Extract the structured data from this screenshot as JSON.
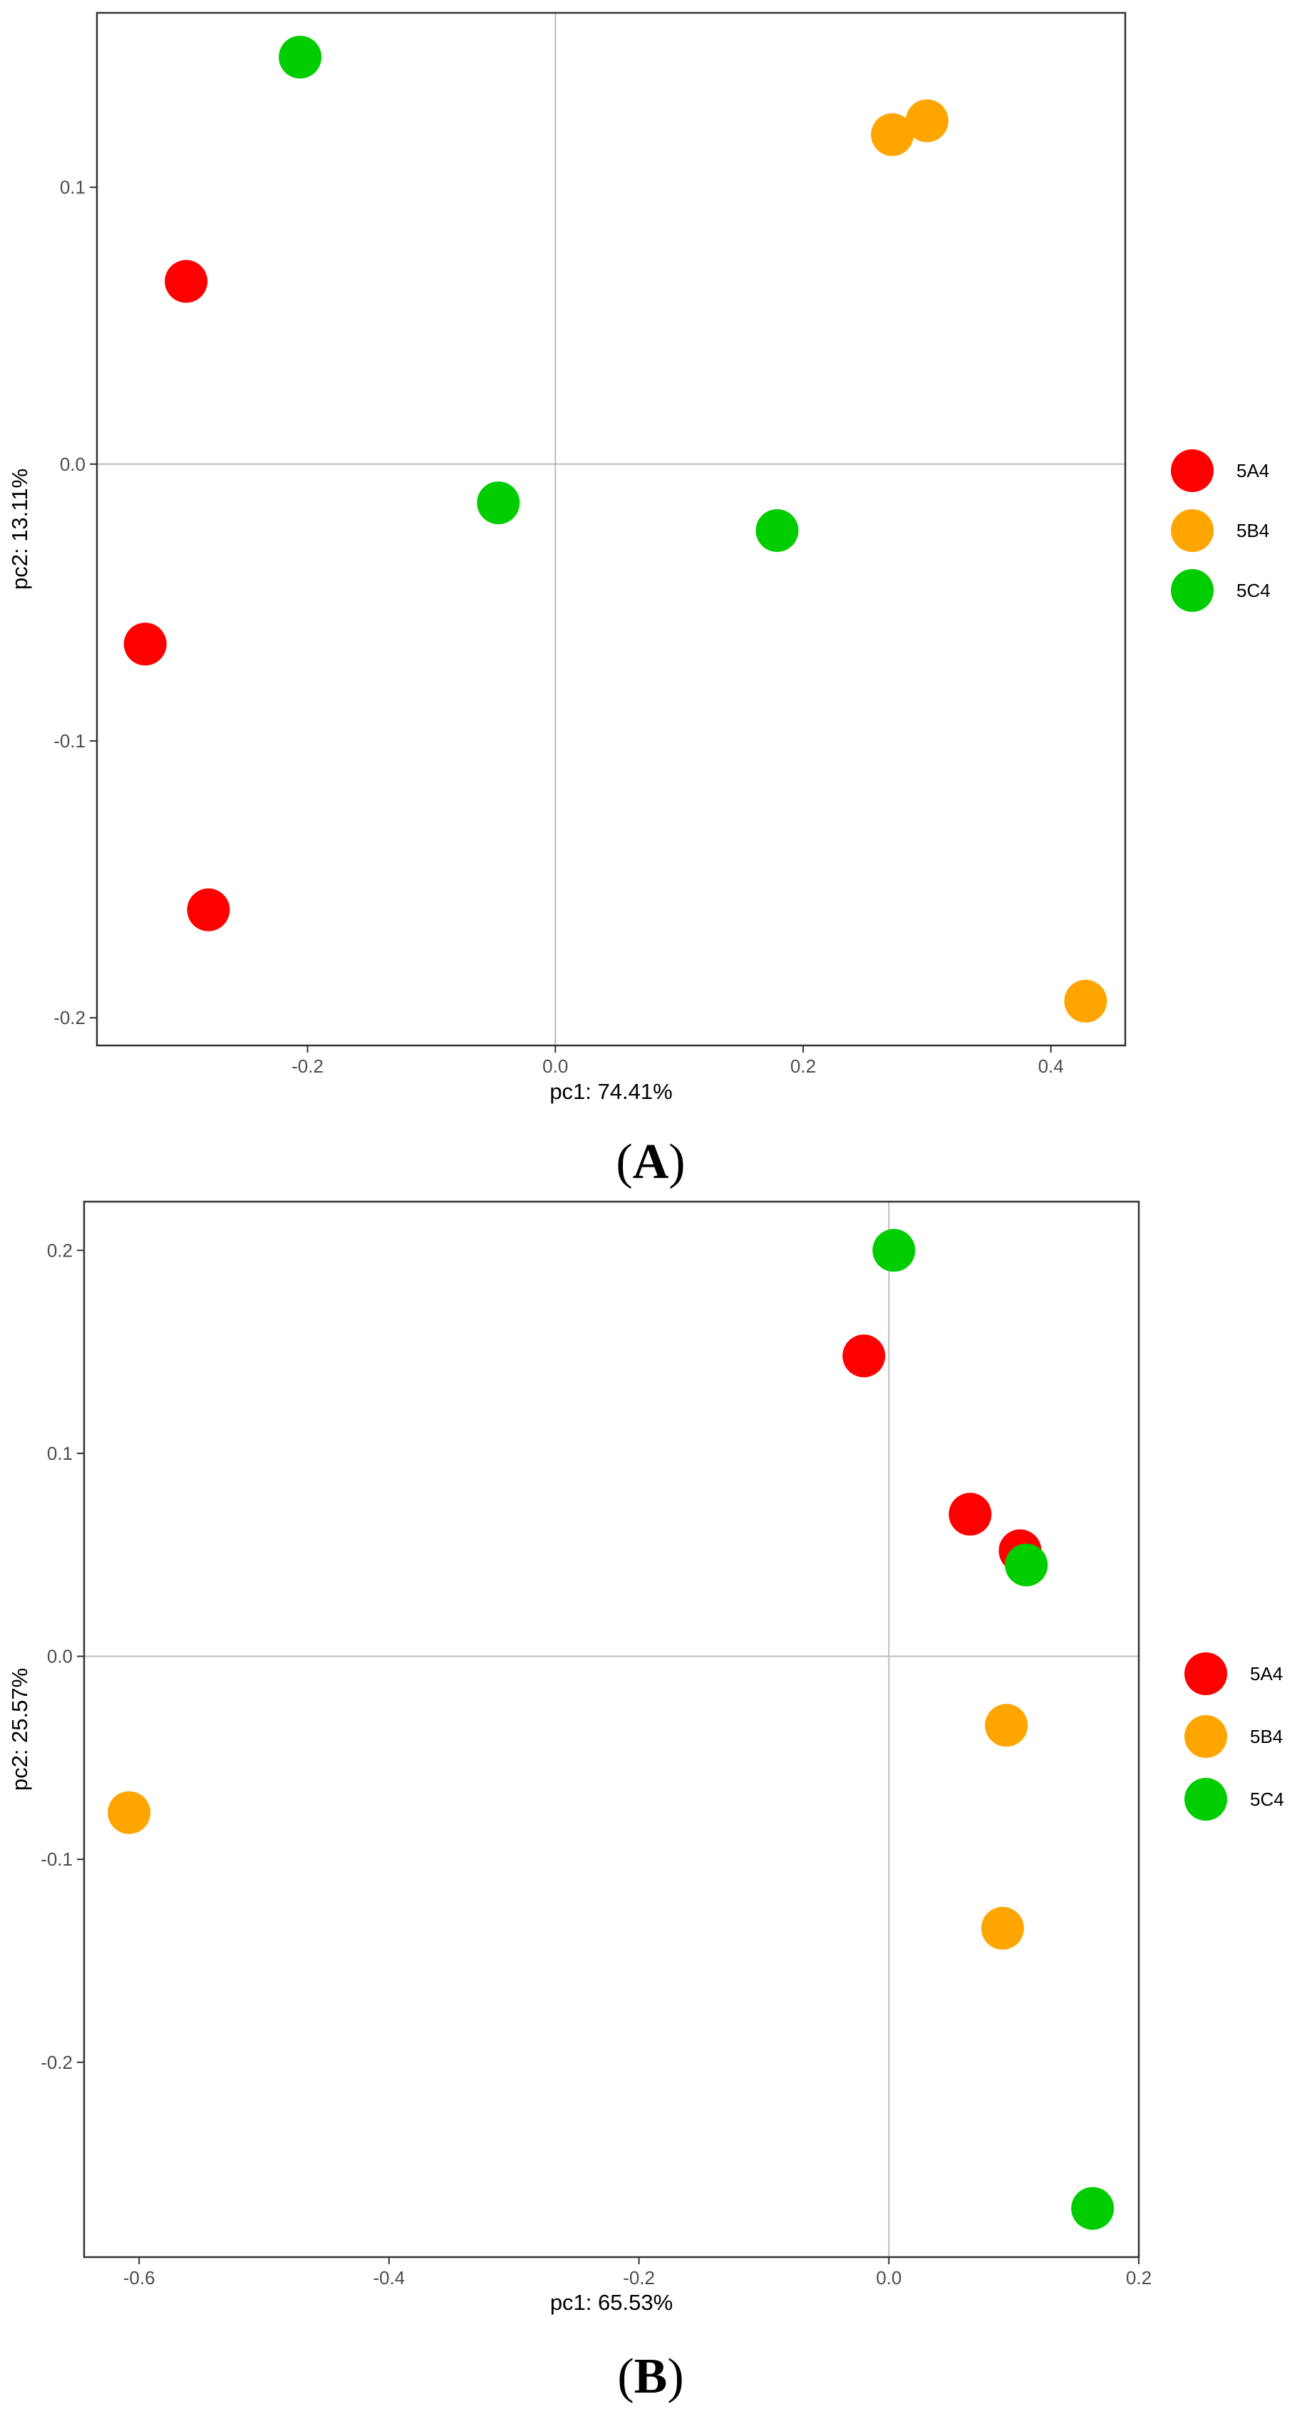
{
  "chart_data": [
    {
      "type": "scatter",
      "panel_label": "A",
      "xlabel": "pc1: 74.41%",
      "ylabel": "pc2: 13.11%",
      "xlim": [
        -0.37,
        0.46
      ],
      "ylim": [
        -0.21,
        0.163
      ],
      "xticks": [
        -0.2,
        0.0,
        0.2,
        0.4
      ],
      "xtick_labels": [
        "-0.2",
        "0.0",
        "0.2",
        "0.4"
      ],
      "yticks": [
        -0.2,
        -0.1,
        0.0,
        0.1
      ],
      "ytick_labels": [
        "-0.2",
        "-0.1",
        "0.0",
        "0.1"
      ],
      "reference_lines": {
        "x": 0,
        "y": 0
      },
      "grid": false,
      "legend_position": "right",
      "series": [
        {
          "name": "5A4",
          "color": "#FF0000",
          "points": [
            {
              "x": -0.298,
              "y": 0.066
            },
            {
              "x": -0.331,
              "y": -0.065
            },
            {
              "x": -0.28,
              "y": -0.161
            }
          ]
        },
        {
          "name": "5B4",
          "color": "#FFA500",
          "points": [
            {
              "x": 0.272,
              "y": 0.119
            },
            {
              "x": 0.3,
              "y": 0.124
            },
            {
              "x": 0.428,
              "y": -0.194
            }
          ]
        },
        {
          "name": "5C4",
          "color": "#00CD00",
          "points": [
            {
              "x": -0.206,
              "y": 0.147
            },
            {
              "x": -0.046,
              "y": -0.014
            },
            {
              "x": 0.179,
              "y": -0.024
            }
          ]
        }
      ]
    },
    {
      "type": "scatter",
      "panel_label": "B",
      "xlabel": "pc1: 65.53%",
      "ylabel": "pc2: 25.57%",
      "xlim": [
        -0.644,
        0.2
      ],
      "ylim": [
        -0.296,
        0.224
      ],
      "xticks": [
        -0.6,
        -0.4,
        -0.2,
        0.0,
        0.2
      ],
      "xtick_labels": [
        "-0.6",
        "-0.4",
        "-0.2",
        "0.0",
        "0.2"
      ],
      "yticks": [
        -0.2,
        -0.1,
        0.0,
        0.1,
        0.2
      ],
      "ytick_labels": [
        "-0.2",
        "-0.1",
        "0.0",
        "0.1",
        "0.2"
      ],
      "reference_lines": {
        "x": 0,
        "y": 0
      },
      "grid": false,
      "legend_position": "right",
      "series": [
        {
          "name": "5A4",
          "color": "#FF0000",
          "points": [
            {
              "x": -0.02,
              "y": 0.148
            },
            {
              "x": 0.065,
              "y": 0.07
            },
            {
              "x": 0.105,
              "y": 0.052
            }
          ]
        },
        {
          "name": "5B4",
          "color": "#FFA500",
          "points": [
            {
              "x": -0.608,
              "y": -0.077
            },
            {
              "x": 0.094,
              "y": -0.034
            },
            {
              "x": 0.091,
              "y": -0.134
            }
          ]
        },
        {
          "name": "5C4",
          "color": "#00CD00",
          "points": [
            {
              "x": 0.004,
              "y": 0.2
            },
            {
              "x": 0.11,
              "y": 0.045
            },
            {
              "x": 0.163,
              "y": -0.272
            }
          ]
        }
      ]
    }
  ]
}
